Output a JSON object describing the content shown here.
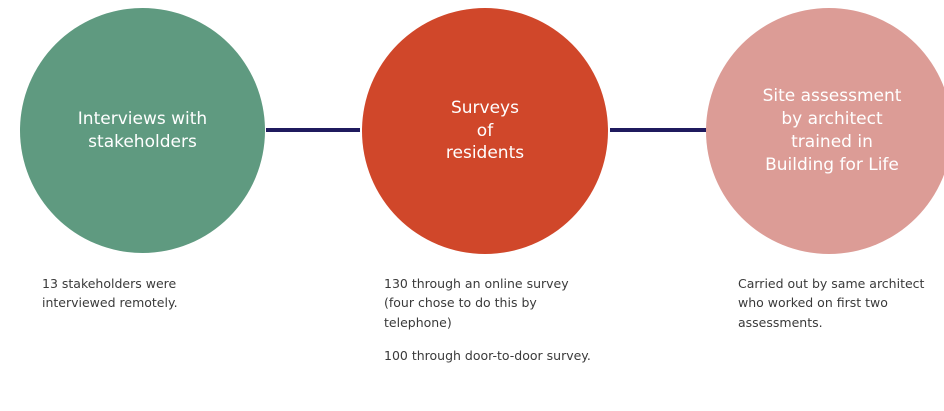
{
  "colors": {
    "stage1": "#5f9a80",
    "stage2": "#d0472a",
    "stage3": "#dc9c96",
    "connector": "#1f1a5e",
    "text": "#3a3a3a"
  },
  "stages": [
    {
      "title_lines": [
        "Interviews with",
        "stakeholders"
      ],
      "descriptions": [
        "13 stakeholders were interviewed remotely."
      ]
    },
    {
      "title_lines": [
        "Surveys",
        "of",
        "residents"
      ],
      "descriptions": [
        "130 through an online survey (four chose to do this by telephone)",
        "100 through door-to-door survey."
      ]
    },
    {
      "title_lines": [
        "Site assessment",
        "by architect",
        "trained in",
        "Building for Life"
      ],
      "descriptions": [
        "Carried out by same architect who worked on first two assessments."
      ]
    }
  ]
}
